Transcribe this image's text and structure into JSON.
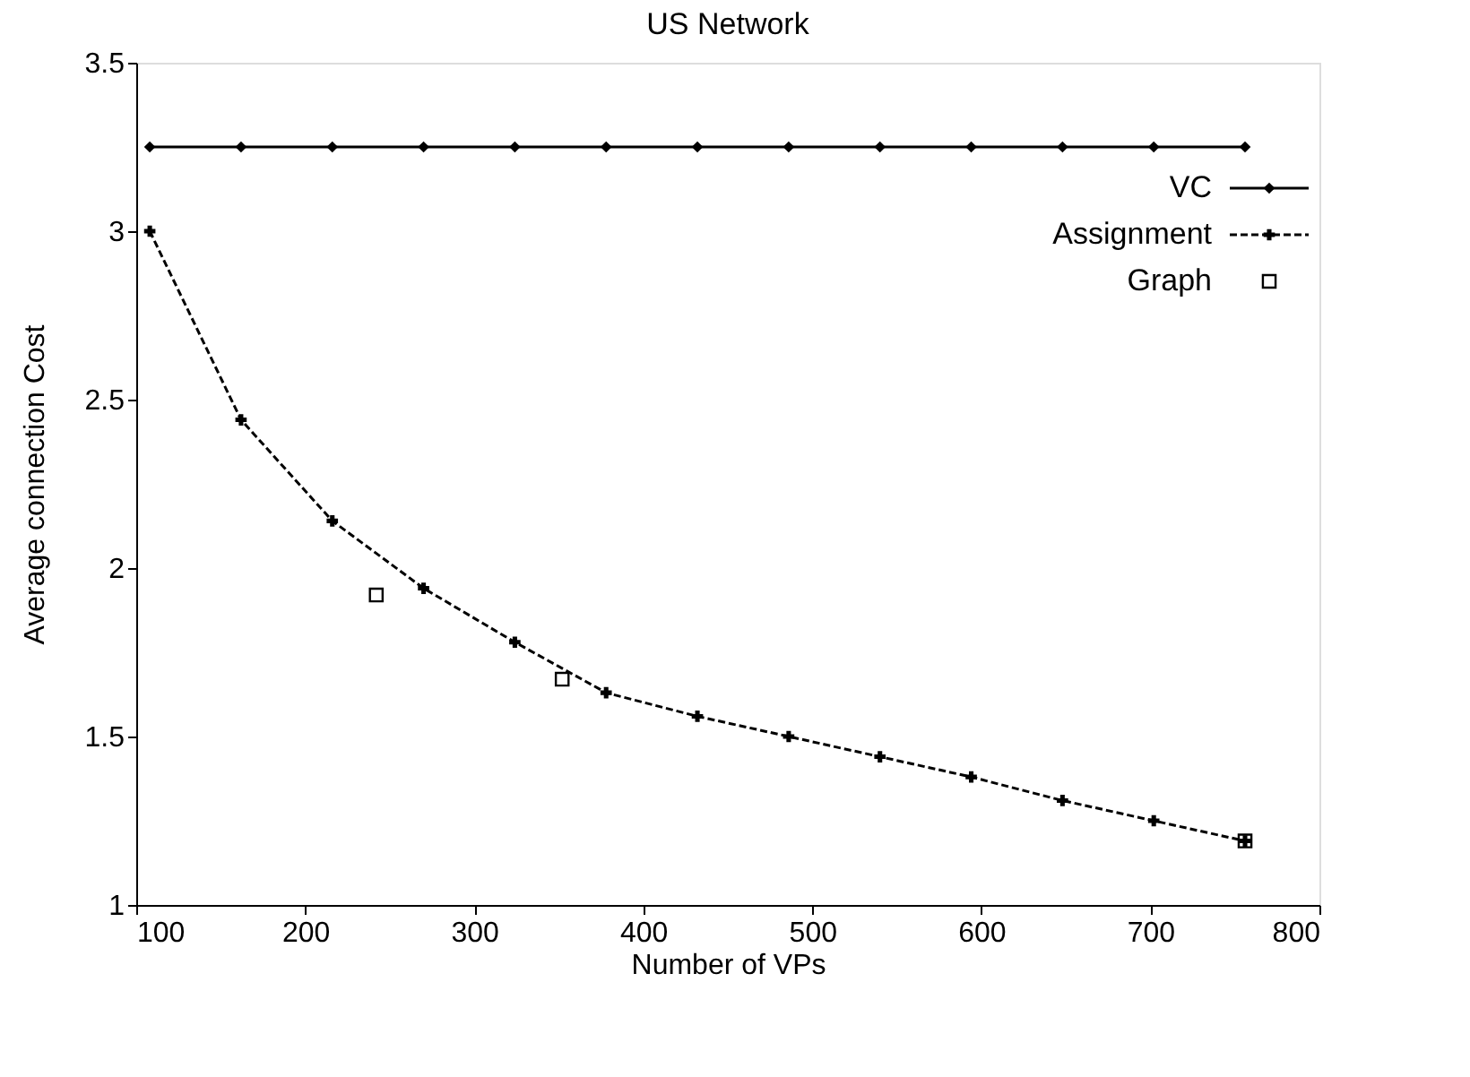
{
  "chart_data": {
    "type": "line",
    "title": "US Network",
    "xlabel": "Number of VPs",
    "ylabel": "Average connection Cost",
    "xlim": [
      100,
      800
    ],
    "xticks": [
      100,
      200,
      300,
      400,
      500,
      600,
      700,
      800
    ],
    "ylim": [
      1,
      3.5
    ],
    "yticks": [
      1,
      1.5,
      2,
      2.5,
      3,
      3.5
    ],
    "grid": false,
    "legend": "top right",
    "series": [
      {
        "name": "VC",
        "color": "#000000",
        "marker": "diamond",
        "line_style": "solid",
        "x": [
          108,
          162,
          216,
          270,
          324,
          378,
          432,
          486,
          540,
          594,
          648,
          702,
          756
        ],
        "values": [
          3.25,
          3.25,
          3.25,
          3.25,
          3.25,
          3.25,
          3.25,
          3.25,
          3.25,
          3.25,
          3.25,
          3.25,
          3.25
        ]
      },
      {
        "name": "Assignment",
        "color": "#000000",
        "marker": "cross",
        "line_style": "dashed",
        "x": [
          108,
          162,
          216,
          270,
          324,
          378,
          432,
          486,
          540,
          594,
          648,
          702,
          756
        ],
        "values": [
          3.0,
          2.44,
          2.14,
          1.94,
          1.78,
          1.63,
          1.56,
          1.5,
          1.44,
          1.38,
          1.31,
          1.25,
          1.19
        ]
      },
      {
        "name": "Graph",
        "type": "scatter",
        "color": "#000000",
        "marker": "square",
        "x": [
          242,
          352,
          756
        ],
        "values": [
          1.92,
          1.67,
          1.19
        ]
      }
    ]
  }
}
